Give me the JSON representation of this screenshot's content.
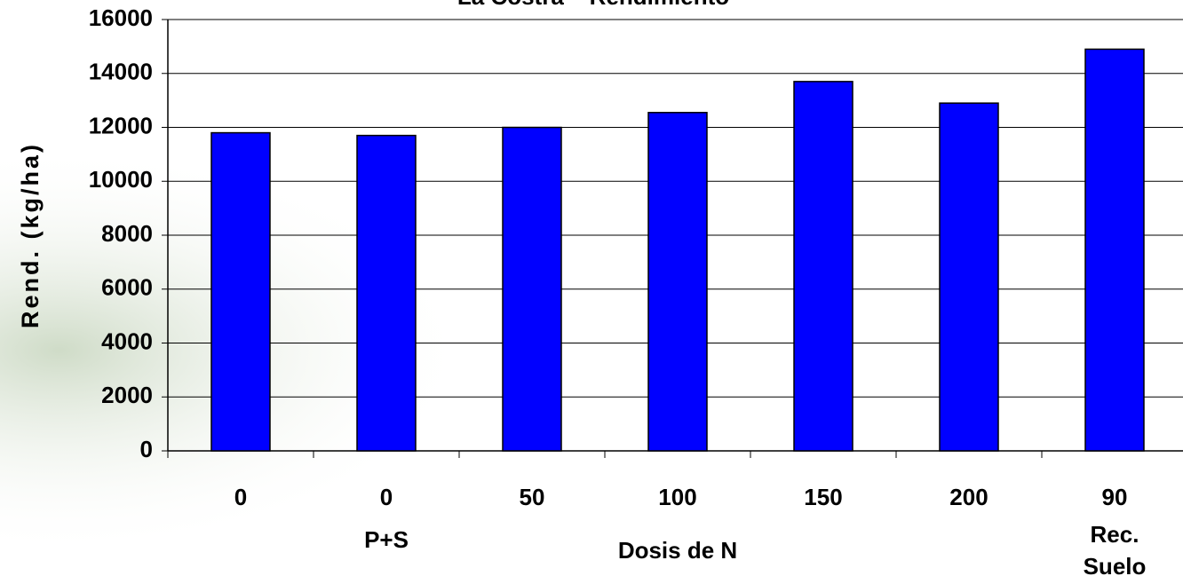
{
  "chart_data": {
    "type": "bar",
    "title": "La Costra – Rendimiento",
    "categories": [
      "0",
      "0",
      "50",
      "100",
      "150",
      "200",
      "90"
    ],
    "category_notes": [
      [],
      [
        "P+S"
      ],
      [],
      [],
      [],
      [],
      [
        "Rec.",
        "Suelo"
      ]
    ],
    "values": [
      11800,
      11700,
      12000,
      12550,
      13700,
      12900,
      14900
    ],
    "color": "#0000ff",
    "ylim": [
      0,
      16000
    ],
    "yticks": [
      0,
      2000,
      4000,
      6000,
      8000,
      10000,
      12000,
      14000,
      16000
    ],
    "grid": true,
    "y_label": "Rend. (kg/ha)",
    "x_label": "Dosis de N"
  }
}
